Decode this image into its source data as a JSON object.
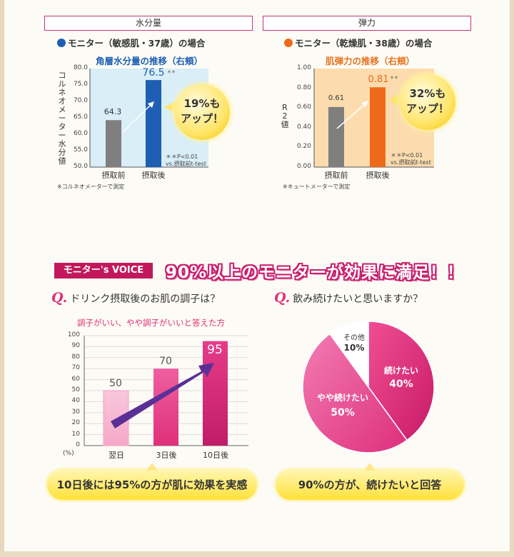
{
  "colors": {
    "pink": "#e0307a",
    "blue": "#1e5fb3",
    "orange": "#ee6a1b",
    "gray": "#888888"
  },
  "top_left": {
    "box_title": "水分量",
    "subtitle": "モニター（敏感肌・37歳）の場合",
    "chart_title": "角層水分量の推移（右頬）",
    "y_label": "コルネオメーター水分値",
    "callout_line1": "19%も",
    "callout_line2": "アップ！",
    "significance_line1": "＊＊P<0.01",
    "significance_line2": "vs.摂取前t-test",
    "note": "※コルネオメーターで測定"
  },
  "top_right": {
    "box_title": "弾力",
    "subtitle": "モニター（乾燥肌・38歳）の場合",
    "chart_title": "肌弾力の推移（右頬）",
    "y_label": "R2値",
    "callout_line1": "32%も",
    "callout_line2": "アップ！",
    "significance_line1": "＊＊P<0.01",
    "significance_line2": "vs.摂取前t-test",
    "note": "※キュートメーターで測定"
  },
  "voice": {
    "badge": "モニター's VOICE",
    "headline": "90%以上のモニターが効果に満足！！",
    "q1": "ドリンク摂取後のお肌の調子は？",
    "q2": "飲み続けたいと思いますか？",
    "q_mark": "Q.",
    "q1_chart_title": "調子がいい、やや調子がいいと答えた方",
    "q1_pill": "10日後には95%の方が肌に効果を実感",
    "q2_pill": "90%の方が、続けたいと回答",
    "percent_unit": "(%)"
  },
  "chart_data": [
    {
      "type": "bar",
      "title": "角層水分量の推移（右頬）",
      "ylabel": "コルネオメーター水分値",
      "categories": [
        "摂取前",
        "摂取後"
      ],
      "values": [
        64.3,
        76.5
      ],
      "value_labels": [
        "64.3",
        "76.5"
      ],
      "annotation": "＊＊",
      "ylim": [
        50,
        80
      ],
      "yticks": [
        "80.0",
        "75.0",
        "70.0",
        "65.0",
        "60.0",
        "55.0",
        "50.0"
      ]
    },
    {
      "type": "bar",
      "title": "肌弾力の推移（右頬）",
      "ylabel": "R2値",
      "categories": [
        "摂取前",
        "摂取後"
      ],
      "values": [
        0.61,
        0.81
      ],
      "value_labels": [
        "0.61",
        "0.81"
      ],
      "annotation": "＊＊",
      "ylim": [
        0,
        1
      ],
      "yticks": [
        "1.00",
        "0.80",
        "0.60",
        "0.40",
        "0.20",
        "0.00"
      ]
    },
    {
      "type": "bar",
      "title": "調子がいい、やや調子がいいと答えた方",
      "categories": [
        "翌日",
        "3日後",
        "10日後"
      ],
      "values": [
        50,
        70,
        95
      ],
      "value_labels": [
        "50",
        "70",
        "95"
      ],
      "ylim": [
        0,
        100
      ],
      "yticks": [
        "100",
        "90",
        "80",
        "70",
        "60",
        "50",
        "40",
        "30",
        "20",
        "10",
        "0"
      ],
      "unit": "(%)"
    },
    {
      "type": "pie",
      "title": "飲み続けたいと思いますか？",
      "slices": [
        {
          "label": "続けたい",
          "value": 40,
          "value_label": "40%"
        },
        {
          "label": "やや続けたい",
          "value": 50,
          "value_label": "50%"
        },
        {
          "label": "その他",
          "value": 10,
          "value_label": "10%"
        }
      ]
    }
  ]
}
